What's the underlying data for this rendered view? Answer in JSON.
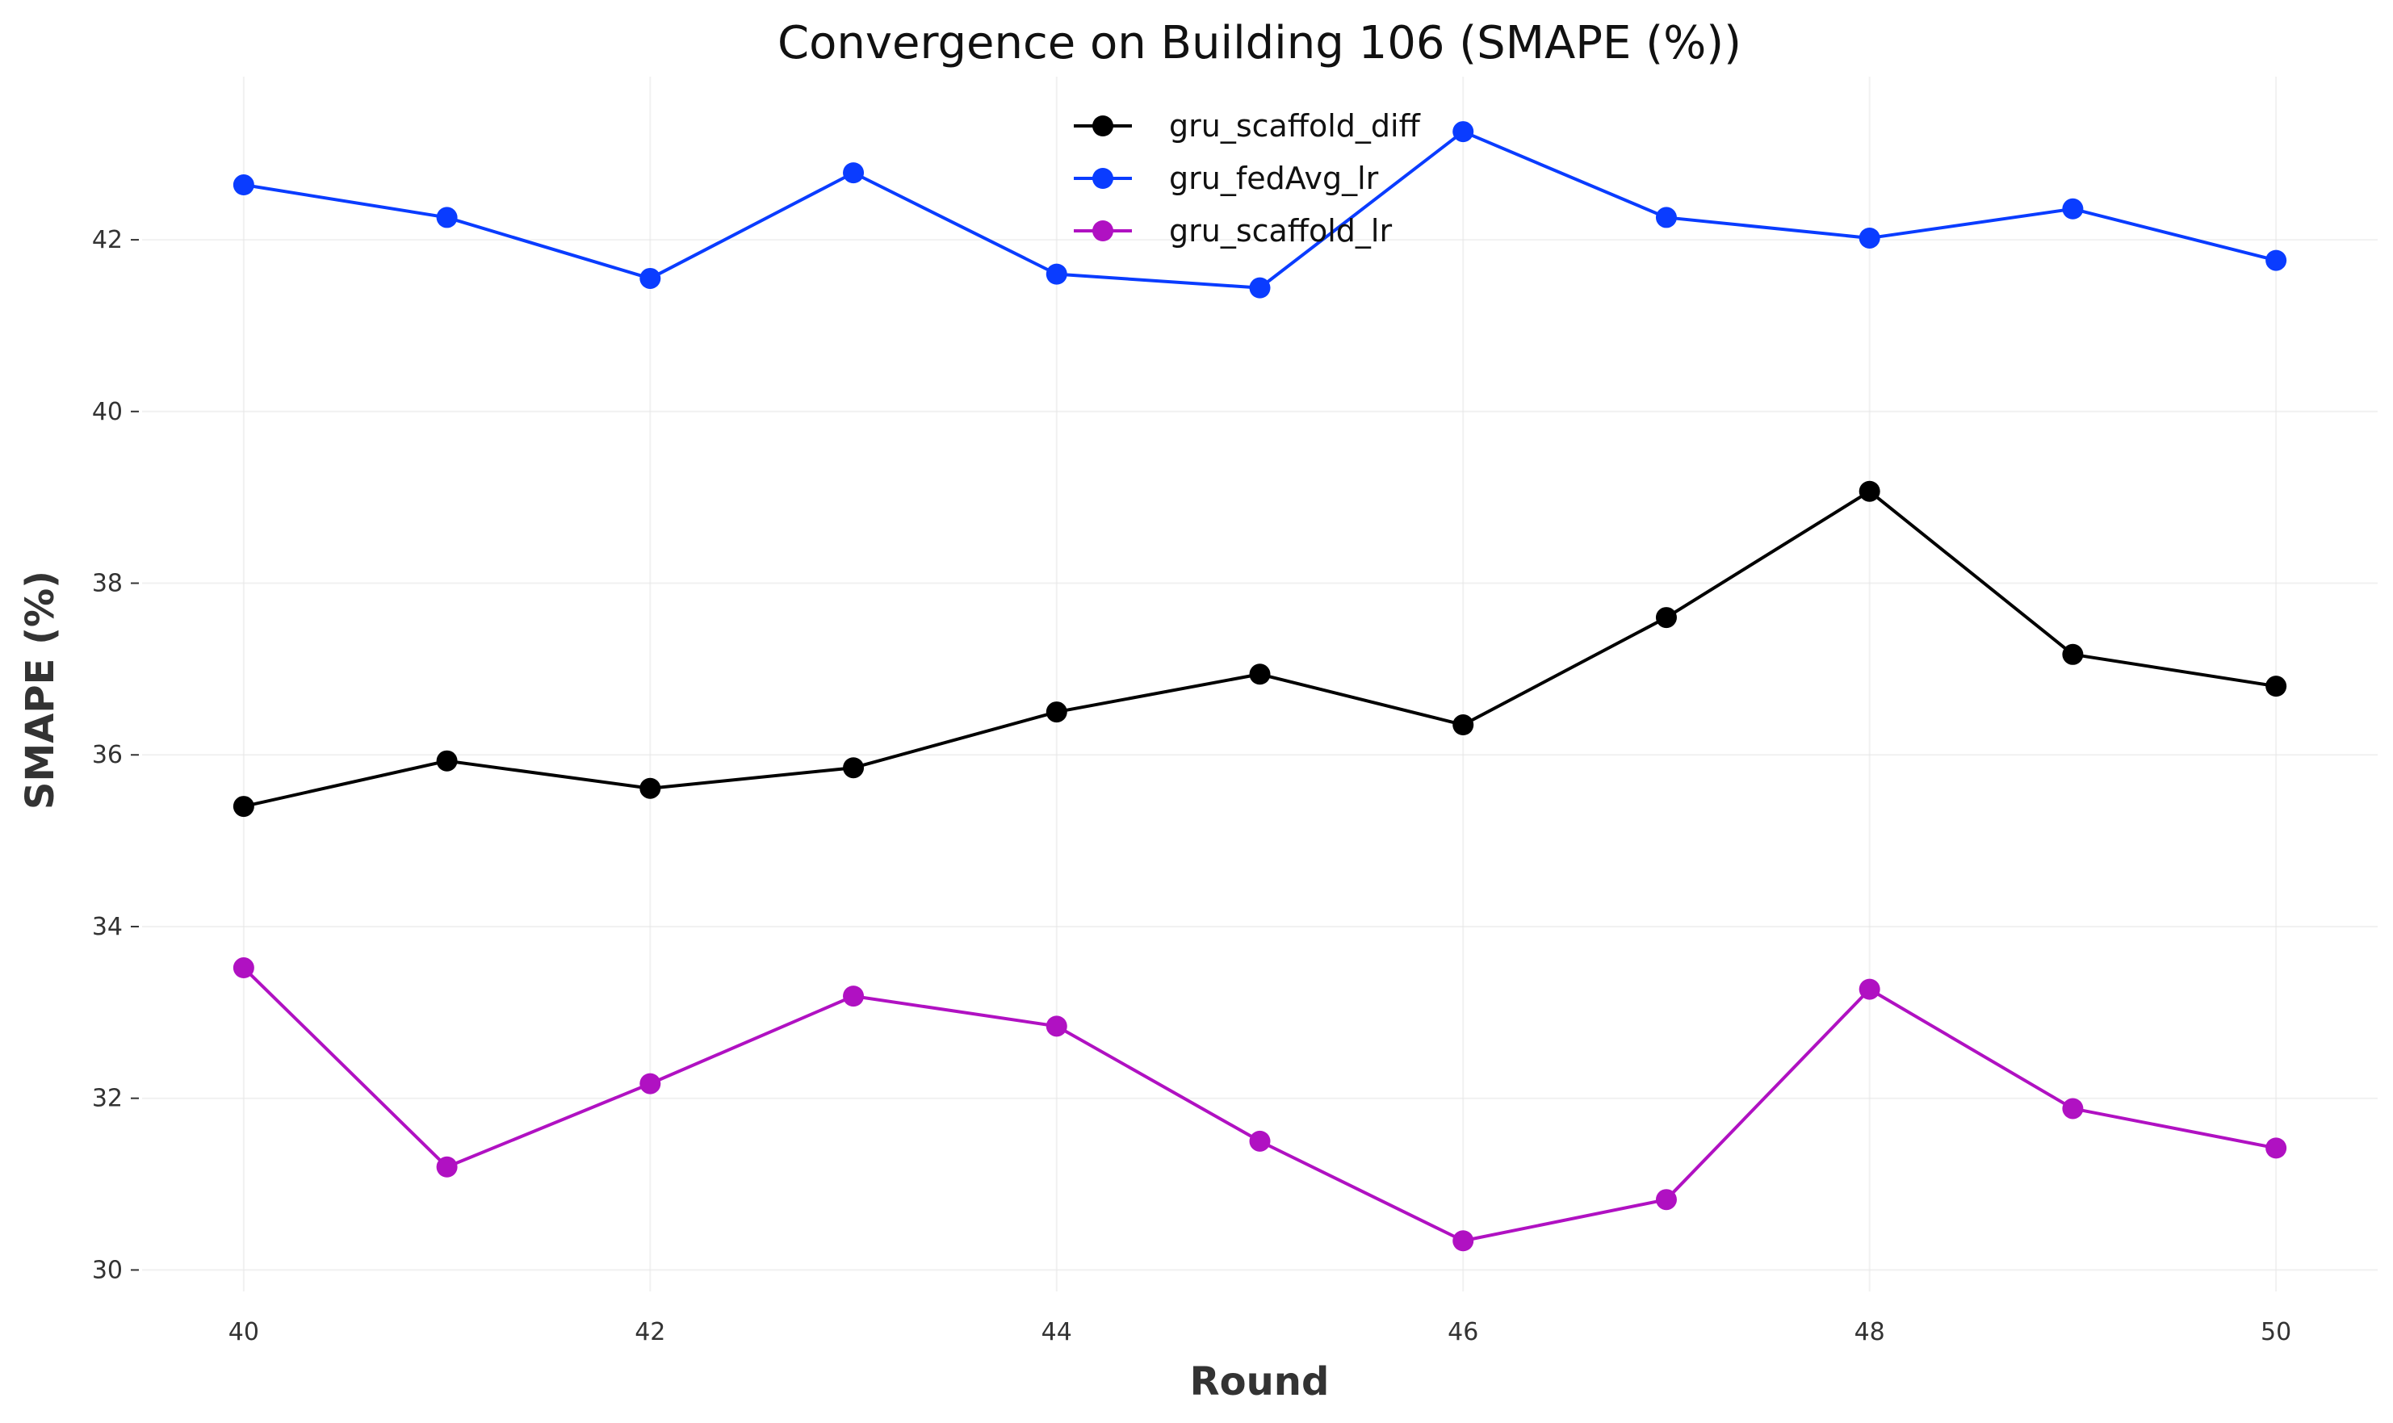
{
  "chart_data": {
    "type": "line",
    "title": "Convergence on Building 106 (SMAPE (%))",
    "xlabel": "Round",
    "ylabel": "SMAPE (%)",
    "x": [
      40,
      41,
      42,
      43,
      44,
      45,
      46,
      47,
      48,
      49,
      50
    ],
    "xlim": [
      39.5,
      50.5
    ],
    "ylim": [
      29.75,
      43.9
    ],
    "x_ticks": [
      40,
      42,
      44,
      46,
      48,
      50
    ],
    "y_ticks": [
      30,
      32,
      34,
      36,
      38,
      40,
      42
    ],
    "grid": true,
    "legend_position": "top-center",
    "series": [
      {
        "name": "gru_scaffold_diff",
        "color": "#000000",
        "marker": "circle",
        "values": [
          35.4,
          35.93,
          35.61,
          35.85,
          36.5,
          36.94,
          36.35,
          37.6,
          39.07,
          37.17,
          36.8
        ]
      },
      {
        "name": "gru_fedAvg_lr",
        "color": "#0a3cff",
        "marker": "circle",
        "values": [
          42.64,
          42.26,
          41.55,
          42.78,
          41.6,
          41.44,
          43.26,
          42.26,
          42.02,
          42.36,
          41.76
        ]
      },
      {
        "name": "gru_scaffold_lr",
        "color": "#b011c2",
        "marker": "circle",
        "values": [
          33.52,
          31.2,
          32.17,
          33.19,
          32.84,
          31.5,
          30.34,
          30.82,
          33.27,
          31.88,
          31.42
        ]
      }
    ]
  }
}
